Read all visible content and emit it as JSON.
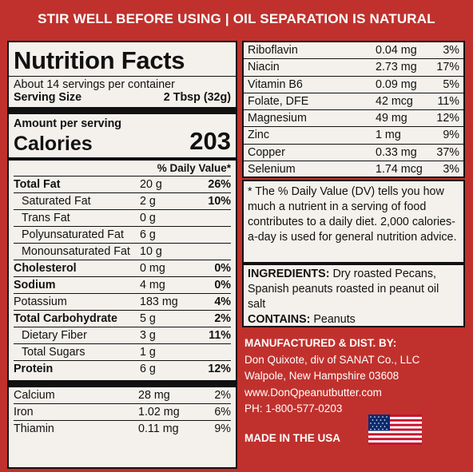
{
  "banner": "STIR WELL BEFORE USING | OIL SEPARATION IS NATURAL",
  "title": "Nutrition Facts",
  "servings": "About 14 servings per container",
  "serving_size_label": "Serving Size",
  "serving_size_value": "2 Tbsp  (32g)",
  "amount_per_serving": "Amount per serving",
  "calories_label": "Calories",
  "calories_value": "203",
  "dv_header": "% Daily Value*",
  "nutrients": [
    {
      "name": "Total Fat",
      "amount": "20 g",
      "dv": "26%"
    },
    {
      "name": "Saturated Fat",
      "amount": "2 g",
      "dv": "10%"
    },
    {
      "name": "Trans Fat",
      "amount": "0 g",
      "dv": ""
    },
    {
      "name": "Polyunsaturated Fat",
      "amount": "6 g",
      "dv": ""
    },
    {
      "name": "Monounsaturated Fat",
      "amount": "10 g",
      "dv": ""
    },
    {
      "name": "Cholesterol",
      "amount": "0 mg",
      "dv": "0%"
    },
    {
      "name": "Sodium",
      "amount": "4 mg",
      "dv": "0%"
    },
    {
      "name": "Potassium",
      "amount": "183 mg",
      "dv": "4%"
    },
    {
      "name": "Total Carbohydrate",
      "amount": "5 g",
      "dv": "2%"
    },
    {
      "name": "Dietary Fiber",
      "amount": "3 g",
      "dv": "11%"
    },
    {
      "name": "Total Sugars",
      "amount": "1 g",
      "dv": ""
    },
    {
      "name": "Protein",
      "amount": "6 g",
      "dv": "12%"
    }
  ],
  "vitamins_left": [
    {
      "name": "Calcium",
      "amount": "28 mg",
      "dv": "2%"
    },
    {
      "name": "Iron",
      "amount": "1.02 mg",
      "dv": "6%"
    },
    {
      "name": "Thiamin",
      "amount": "0.11 mg",
      "dv": "9%"
    }
  ],
  "vitamins_right": [
    {
      "name": "Riboflavin",
      "amount": "0.04 mg",
      "dv": "3%"
    },
    {
      "name": "Niacin",
      "amount": "2.73 mg",
      "dv": "17%"
    },
    {
      "name": "Vitamin B6",
      "amount": "0.09 mg",
      "dv": "5%"
    },
    {
      "name": "Folate, DFE",
      "amount": "42 mcg",
      "dv": "11%"
    },
    {
      "name": "Magnesium",
      "amount": "49 mg",
      "dv": "12%"
    },
    {
      "name": "Zinc",
      "amount": "1 mg",
      "dv": "9%"
    },
    {
      "name": "Copper",
      "amount": "0.33 mg",
      "dv": "37%"
    },
    {
      "name": "Selenium",
      "amount": "1.74 mcg",
      "dv": "3%"
    }
  ],
  "dv_note": "* The % Daily Value (DV) tells you how much a nutrient in a serving of food contributes to a daily diet. 2,000 calories-a-day is used for general nutrition advice.",
  "ingredients_label": "INGREDIENTS:",
  "ingredients_text": " Dry roasted Pecans, Spanish peanuts roasted in peanut oil salt",
  "contains_label": "CONTAINS:",
  "contains_text": " Peanuts",
  "manufacturer": {
    "heading": "MANUFACTURED & DIST. BY:",
    "company": "Don Quixote, div of SANAT Co., LLC",
    "address": "Walpole, New Hampshire 03608",
    "website": "www.DonQpeanutbutter.com",
    "phone": "PH: 1-800-577-0203"
  },
  "made_in": "MADE IN THE USA",
  "flag_icon": "us-flag-icon",
  "colors": {
    "background": "#c0312d",
    "panel": "#f4f1ec"
  }
}
